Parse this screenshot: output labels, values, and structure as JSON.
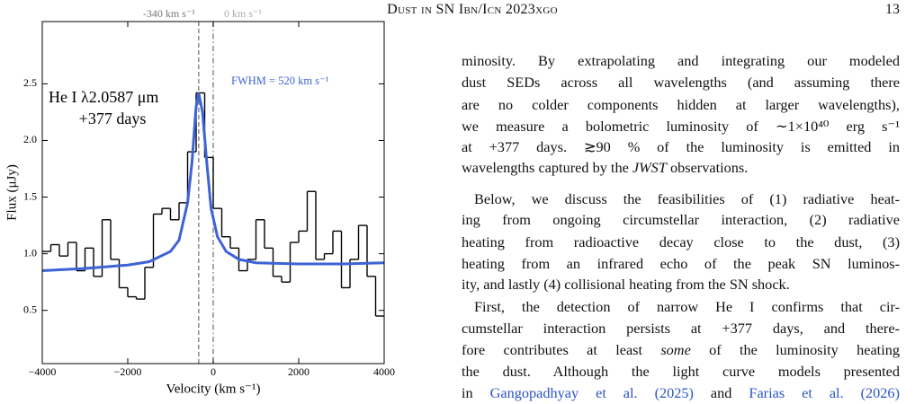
{
  "header": {
    "title": "Dust in SN Ibn/Icn 2023xgo",
    "page": "13"
  },
  "chart_data": {
    "type": "histogram",
    "xlabel": "Velocity (km s⁻¹)",
    "ylabel": "Flux (μJy)",
    "annotations": [
      "He I λ2.0587 μm",
      "+377 days",
      "FWHM = 520 km s⁻¹"
    ],
    "bins": [
      -4000,
      -3800,
      -3600,
      -3400,
      -3200,
      -3000,
      -2800,
      -2600,
      -2400,
      -2200,
      -2000,
      -1800,
      -1600,
      -1400,
      -1200,
      -1000,
      -800,
      -600,
      -400,
      -200,
      0,
      200,
      400,
      600,
      800,
      1000,
      1200,
      1400,
      1600,
      1800,
      2000,
      2200,
      2400,
      2600,
      2800,
      3000,
      3200,
      3400,
      3600,
      3800,
      4000
    ],
    "values": [
      1.02,
      1.08,
      0.98,
      1.1,
      0.85,
      1.05,
      0.8,
      1.3,
      0.95,
      0.7,
      0.62,
      0.6,
      0.88,
      1.35,
      1.4,
      1.3,
      1.45,
      1.9,
      2.42,
      1.85,
      1.4,
      1.15,
      1.05,
      0.85,
      0.95,
      1.3,
      1.05,
      0.8,
      0.75,
      1.1,
      1.2,
      1.55,
      0.95,
      1.0,
      1.2,
      0.7,
      0.95,
      1.25,
      0.8,
      0.45
    ],
    "color": "#000000",
    "fit": {
      "x": [
        -4000,
        -3000,
        -2000,
        -1500,
        -1000,
        -800,
        -600,
        -500,
        -400,
        -340,
        -250,
        -150,
        -50,
        100,
        300,
        600,
        1000,
        2000,
        3000,
        4000
      ],
      "values": [
        0.85,
        0.87,
        0.9,
        0.93,
        1.02,
        1.12,
        1.45,
        1.8,
        2.3,
        2.42,
        2.25,
        1.8,
        1.4,
        1.15,
        1.02,
        0.95,
        0.92,
        0.91,
        0.91,
        0.92
      ],
      "color": "#3d63d4"
    },
    "vlines": [
      {
        "value": -340,
        "label": "-340 km s⁻¹",
        "style": "dashed"
      },
      {
        "value": 0,
        "label": "0 km s⁻¹",
        "style": "dashdot"
      }
    ],
    "xlim": [
      -4000,
      4000
    ],
    "xticks": [
      {
        "value": -4000,
        "label": "−4000"
      },
      {
        "value": -2000,
        "label": "−2000"
      },
      0,
      2000,
      4000
    ],
    "ylim": [
      0.03,
      3.05
    ],
    "yticks": [
      0.5,
      {
        "value": 1.0,
        "label": "1.0"
      },
      1.5,
      {
        "value": 2.0,
        "label": "2.0"
      },
      2.5
    ]
  },
  "text": {
    "paragraphs": [
      {
        "indent": false,
        "lines": [
          "minosity. By extrapolating and integrating our modeled",
          "dust SEDs across all wavelengths (and assuming there",
          "are no colder components hidden at larger wavelengths),",
          "we measure a bolometric luminosity of ∼1×10⁴⁰ erg s⁻¹",
          "at +377 days. ≳90 % of the luminosity is emitted in",
          [
            {
              "text": "wavelengths captured by the "
            },
            {
              "text": "JWST",
              "style": "italic"
            },
            {
              "text": " observations."
            }
          ]
        ]
      },
      {
        "indent": true,
        "lines": [
          "Below, we discuss the feasibilities of (1) radiative heat-",
          "ing from ongoing circumstellar interaction, (2) radiative",
          "heating from radioactive decay close to the dust, (3)",
          "heating from an infrared echo of the peak SN luminos-",
          "ity, and lastly (4) collisional heating from the SN shock."
        ]
      },
      {
        "indent": true,
        "continues": true,
        "lines": [
          "First, the detection of narrow He I confirms that cir-",
          "cumstellar interaction persists at +377 days, and there-",
          [
            {
              "text": "fore contributes at least "
            },
            {
              "text": "some",
              "style": "italic"
            },
            {
              "text": " of the luminosity heating"
            }
          ],
          "the dust.  Although the light curve models presented",
          [
            {
              "text": "in "
            },
            {
              "text": "Gangopadhyay et al. (2025)",
              "style": "link"
            },
            {
              "text": " and "
            },
            {
              "text": "Farias et al. (2026)",
              "style": "link"
            }
          ]
        ]
      }
    ]
  }
}
